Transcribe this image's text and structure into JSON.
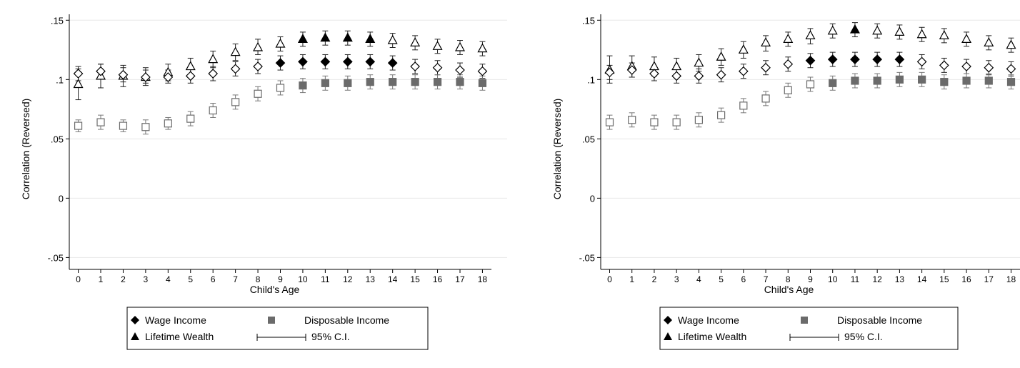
{
  "chart_data": [
    {
      "type": "scatter",
      "title": "",
      "xlabel": "Child's Age",
      "ylabel": "Correlation (Reversed)",
      "ylim": [
        -0.06,
        0.155
      ],
      "xlim": [
        -0.4,
        18.4
      ],
      "grid": true,
      "legend_position": "bottom",
      "y_ticks": [
        -0.05,
        0,
        0.05,
        0.1,
        0.15
      ],
      "y_tick_labels": [
        "-.05",
        "0",
        ".05",
        ".1",
        ".15"
      ],
      "x": [
        0,
        1,
        2,
        3,
        4,
        5,
        6,
        7,
        8,
        9,
        10,
        11,
        12,
        13,
        14,
        15,
        16,
        17,
        18
      ],
      "x_tick_labels": [
        "0",
        "1",
        "2",
        "3",
        "4",
        "5",
        "6",
        "7",
        "8",
        "9",
        "10",
        "11",
        "12",
        "13",
        "14",
        "15",
        "16",
        "17",
        "18"
      ],
      "legend": {
        "wage": "Wage Income",
        "disposable": "Disposable Income",
        "lifetime": "Lifetime Wealth",
        "ci": "95% C.I."
      },
      "series": [
        {
          "name": "Lifetime Wealth",
          "marker": "triangle",
          "values": [
            0.096,
            0.103,
            0.103,
            0.102,
            0.106,
            0.111,
            0.117,
            0.123,
            0.127,
            0.13,
            0.134,
            0.135,
            0.135,
            0.134,
            0.133,
            0.131,
            0.128,
            0.127,
            0.126
          ],
          "ci_low": [
            0.083,
            0.093,
            0.094,
            0.095,
            0.099,
            0.104,
            0.11,
            0.116,
            0.121,
            0.124,
            0.128,
            0.129,
            0.129,
            0.128,
            0.127,
            0.125,
            0.122,
            0.121,
            0.12
          ],
          "ci_high": [
            0.109,
            0.113,
            0.112,
            0.11,
            0.113,
            0.118,
            0.124,
            0.13,
            0.134,
            0.136,
            0.14,
            0.141,
            0.141,
            0.14,
            0.139,
            0.137,
            0.134,
            0.133,
            0.132
          ],
          "filled": [
            false,
            false,
            false,
            false,
            false,
            false,
            false,
            false,
            false,
            false,
            true,
            true,
            true,
            true,
            false,
            false,
            false,
            false,
            false
          ]
        },
        {
          "name": "Wage Income",
          "marker": "diamond",
          "values": [
            0.105,
            0.107,
            0.104,
            0.102,
            0.102,
            0.103,
            0.105,
            0.109,
            0.111,
            0.114,
            0.115,
            0.115,
            0.115,
            0.115,
            0.114,
            0.111,
            0.11,
            0.108,
            0.107
          ],
          "ci_low": [
            0.099,
            0.101,
            0.098,
            0.097,
            0.097,
            0.097,
            0.099,
            0.103,
            0.105,
            0.108,
            0.109,
            0.109,
            0.109,
            0.109,
            0.108,
            0.105,
            0.104,
            0.102,
            0.101
          ],
          "ci_high": [
            0.111,
            0.113,
            0.11,
            0.108,
            0.108,
            0.109,
            0.111,
            0.115,
            0.117,
            0.12,
            0.121,
            0.121,
            0.121,
            0.121,
            0.12,
            0.117,
            0.116,
            0.114,
            0.113
          ],
          "filled": [
            false,
            false,
            false,
            false,
            false,
            false,
            false,
            false,
            false,
            true,
            true,
            true,
            true,
            true,
            true,
            false,
            false,
            false,
            false
          ]
        },
        {
          "name": "Disposable Income",
          "marker": "square",
          "values": [
            0.061,
            0.064,
            0.061,
            0.06,
            0.063,
            0.067,
            0.074,
            0.081,
            0.088,
            0.093,
            0.095,
            0.097,
            0.097,
            0.098,
            0.098,
            0.098,
            0.098,
            0.098,
            0.097
          ],
          "ci_low": [
            0.056,
            0.058,
            0.056,
            0.054,
            0.058,
            0.061,
            0.068,
            0.075,
            0.082,
            0.087,
            0.089,
            0.091,
            0.091,
            0.092,
            0.092,
            0.092,
            0.092,
            0.092,
            0.091
          ],
          "ci_high": [
            0.066,
            0.07,
            0.066,
            0.066,
            0.068,
            0.073,
            0.08,
            0.087,
            0.094,
            0.099,
            0.101,
            0.103,
            0.103,
            0.104,
            0.104,
            0.104,
            0.104,
            0.104,
            0.103
          ],
          "filled": [
            false,
            false,
            false,
            false,
            false,
            false,
            false,
            false,
            false,
            false,
            true,
            true,
            true,
            true,
            true,
            true,
            true,
            true,
            true
          ]
        }
      ]
    },
    {
      "type": "scatter",
      "title": "",
      "xlabel": "Child's Age",
      "ylabel": "Correlation (Reversed)",
      "ylim": [
        -0.06,
        0.155
      ],
      "xlim": [
        -0.4,
        18.4
      ],
      "grid": true,
      "legend_position": "bottom",
      "y_ticks": [
        -0.05,
        0,
        0.05,
        0.1,
        0.15
      ],
      "y_tick_labels": [
        "-.05",
        "0",
        ".05",
        ".1",
        ".15"
      ],
      "x": [
        0,
        1,
        2,
        3,
        4,
        5,
        6,
        7,
        8,
        9,
        10,
        11,
        12,
        13,
        14,
        15,
        16,
        17,
        18
      ],
      "x_tick_labels": [
        "0",
        "1",
        "2",
        "3",
        "4",
        "5",
        "6",
        "7",
        "8",
        "9",
        "10",
        "11",
        "12",
        "13",
        "14",
        "15",
        "16",
        "17",
        "18"
      ],
      "legend": {
        "wage": "Wage Income",
        "disposable": "Disposable Income",
        "lifetime": "Lifetime Wealth",
        "ci": "95% C.I."
      },
      "series": [
        {
          "name": "Lifetime Wealth",
          "marker": "triangle",
          "values": [
            0.108,
            0.111,
            0.111,
            0.111,
            0.114,
            0.119,
            0.125,
            0.131,
            0.134,
            0.137,
            0.141,
            0.142,
            0.141,
            0.14,
            0.138,
            0.137,
            0.134,
            0.131,
            0.129
          ],
          "ci_low": [
            0.097,
            0.102,
            0.103,
            0.104,
            0.107,
            0.112,
            0.118,
            0.124,
            0.128,
            0.13,
            0.135,
            0.136,
            0.135,
            0.134,
            0.132,
            0.131,
            0.128,
            0.125,
            0.123
          ],
          "ci_high": [
            0.12,
            0.12,
            0.119,
            0.118,
            0.121,
            0.126,
            0.132,
            0.137,
            0.14,
            0.143,
            0.147,
            0.148,
            0.147,
            0.146,
            0.144,
            0.143,
            0.14,
            0.137,
            0.135
          ],
          "filled": [
            false,
            false,
            false,
            false,
            false,
            false,
            false,
            false,
            false,
            false,
            false,
            true,
            false,
            false,
            false,
            false,
            false,
            false,
            false
          ]
        },
        {
          "name": "Wage Income",
          "marker": "diamond",
          "values": [
            0.106,
            0.108,
            0.105,
            0.103,
            0.103,
            0.104,
            0.107,
            0.11,
            0.113,
            0.116,
            0.117,
            0.117,
            0.117,
            0.117,
            0.115,
            0.112,
            0.111,
            0.11,
            0.109
          ],
          "ci_low": [
            0.1,
            0.102,
            0.099,
            0.097,
            0.097,
            0.098,
            0.101,
            0.104,
            0.107,
            0.11,
            0.111,
            0.111,
            0.111,
            0.111,
            0.109,
            0.106,
            0.105,
            0.104,
            0.103
          ],
          "ci_high": [
            0.112,
            0.114,
            0.111,
            0.109,
            0.109,
            0.11,
            0.113,
            0.116,
            0.119,
            0.122,
            0.123,
            0.123,
            0.123,
            0.123,
            0.121,
            0.118,
            0.117,
            0.116,
            0.115
          ],
          "filled": [
            false,
            false,
            false,
            false,
            false,
            false,
            false,
            false,
            false,
            true,
            true,
            true,
            true,
            true,
            false,
            false,
            false,
            false,
            false
          ]
        },
        {
          "name": "Disposable Income",
          "marker": "square",
          "values": [
            0.064,
            0.066,
            0.064,
            0.064,
            0.066,
            0.07,
            0.078,
            0.084,
            0.091,
            0.096,
            0.097,
            0.099,
            0.099,
            0.1,
            0.1,
            0.098,
            0.099,
            0.099,
            0.098
          ],
          "ci_low": [
            0.058,
            0.06,
            0.058,
            0.058,
            0.06,
            0.064,
            0.072,
            0.078,
            0.085,
            0.09,
            0.091,
            0.093,
            0.093,
            0.094,
            0.094,
            0.092,
            0.093,
            0.093,
            0.092
          ],
          "ci_high": [
            0.07,
            0.072,
            0.07,
            0.07,
            0.072,
            0.076,
            0.084,
            0.09,
            0.097,
            0.102,
            0.103,
            0.105,
            0.105,
            0.106,
            0.106,
            0.104,
            0.105,
            0.105,
            0.104
          ],
          "filled": [
            false,
            false,
            false,
            false,
            false,
            false,
            false,
            false,
            false,
            false,
            true,
            true,
            true,
            true,
            true,
            true,
            true,
            true,
            true
          ]
        }
      ]
    }
  ]
}
